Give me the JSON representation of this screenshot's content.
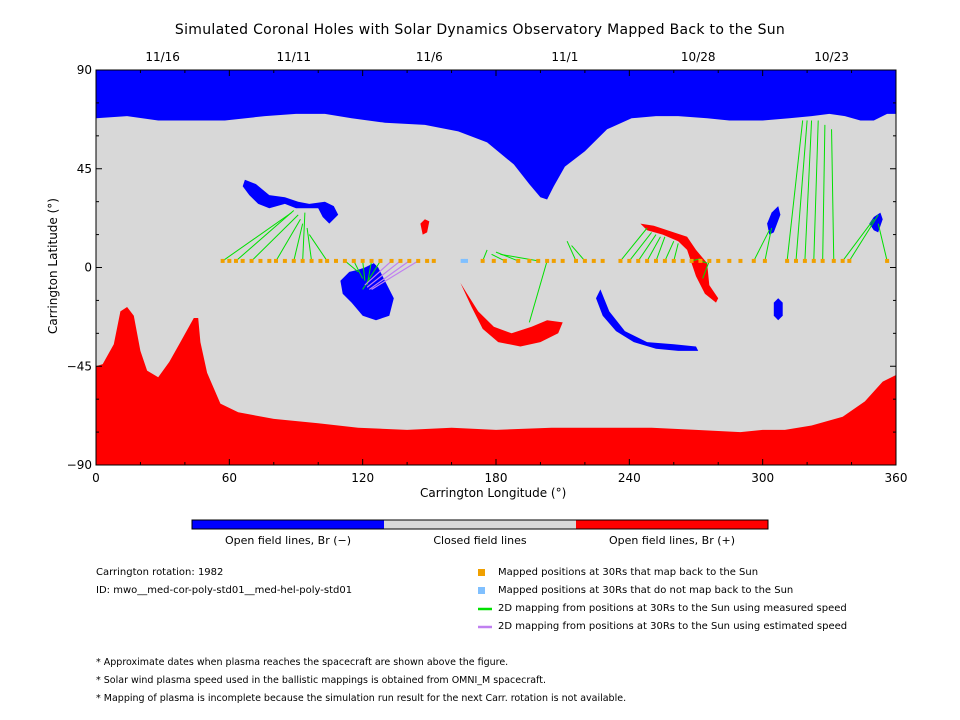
{
  "chart_data": {
    "type": "map",
    "title": "Simulated Coronal Holes with Solar Dynamics Observatory Mapped Back to the Sun",
    "xlabel": "Carrington Longitude (°)",
    "ylabel": "Carrington Latitude (°)",
    "xlim": [
      0,
      360
    ],
    "ylim": [
      -90,
      90
    ],
    "x_ticks": [
      "0",
      "60",
      "120",
      "180",
      "240",
      "300",
      "360"
    ],
    "y_ticks": [
      "90",
      "45",
      "0",
      "−45",
      "−90"
    ],
    "top_dates": [
      {
        "label": "11/16",
        "lon": 30
      },
      {
        "label": "11/11",
        "lon": 89
      },
      {
        "label": "11/6",
        "lon": 150
      },
      {
        "label": "11/1",
        "lon": 211
      },
      {
        "label": "10/28",
        "lon": 271
      },
      {
        "label": "10/23",
        "lon": 331
      }
    ],
    "colors": {
      "open_negative": "#0000ff",
      "closed": "#d8d8d8",
      "open_positive": "#ff0000",
      "mapped_marker": "#f0a000",
      "unmapped_marker": "#80c0ff",
      "measured_line": "#00e000",
      "estimated_line": "#c080f0"
    },
    "colorbar": [
      {
        "label": "Open field lines, Br (−)",
        "color": "#0000ff"
      },
      {
        "label": "Closed field lines",
        "color": "#d8d8d8"
      },
      {
        "label": "Open field lines, Br (+)",
        "color": "#ff0000"
      }
    ],
    "mapped_positions_lon": [
      57,
      60,
      63,
      66,
      70,
      74,
      78,
      81,
      85,
      89,
      93,
      97,
      101,
      104,
      108,
      112,
      116,
      120,
      124,
      128,
      133,
      137,
      141,
      145,
      149,
      152,
      174,
      179,
      184,
      190,
      195,
      199,
      203,
      206,
      210,
      216,
      220,
      224,
      228,
      236,
      240,
      244,
      248,
      252,
      256,
      260,
      264,
      268,
      272,
      276,
      280,
      285,
      290,
      296,
      301,
      311,
      315,
      319,
      323,
      327,
      332,
      336,
      339,
      356
    ],
    "unmapped_positions_lon": [
      165,
      166.5
    ],
    "latitude_of_positions": 3,
    "measured_mappings": [
      {
        "from": 57,
        "to": [
          88,
          25
        ]
      },
      {
        "from": 63,
        "to": [
          89,
          26
        ]
      },
      {
        "from": 70,
        "to": [
          91,
          24
        ]
      },
      {
        "from": 81,
        "to": [
          92,
          22
        ]
      },
      {
        "from": 89,
        "to": [
          93,
          20
        ]
      },
      {
        "from": 93,
        "to": [
          94,
          25
        ]
      },
      {
        "from": 97,
        "to": [
          95,
          18
        ]
      },
      {
        "from": 104,
        "to": [
          96,
          15
        ]
      },
      {
        "from": 112,
        "to": [
          118,
          -2
        ]
      },
      {
        "from": 116,
        "to": [
          120,
          -5
        ]
      },
      {
        "from": 120,
        "to": [
          121,
          -6
        ]
      },
      {
        "from": 124,
        "to": [
          122,
          -8
        ]
      },
      {
        "from": 128,
        "to": [
          120,
          -10
        ]
      },
      {
        "from": 174,
        "to": [
          176,
          8
        ]
      },
      {
        "from": 184,
        "to": [
          178,
          6
        ]
      },
      {
        "from": 190,
        "to": [
          180,
          7
        ]
      },
      {
        "from": 199,
        "to": [
          182,
          6
        ]
      },
      {
        "from": 203,
        "to": [
          195,
          -25
        ]
      },
      {
        "from": 216,
        "to": [
          212,
          12
        ]
      },
      {
        "from": 220,
        "to": [
          214,
          10
        ]
      },
      {
        "from": 236,
        "to": [
          248,
          18
        ]
      },
      {
        "from": 240,
        "to": [
          250,
          16
        ]
      },
      {
        "from": 244,
        "to": [
          252,
          15
        ]
      },
      {
        "from": 248,
        "to": [
          254,
          14
        ]
      },
      {
        "from": 252,
        "to": [
          256,
          14
        ]
      },
      {
        "from": 256,
        "to": [
          260,
          12
        ]
      },
      {
        "from": 260,
        "to": [
          262,
          11
        ]
      },
      {
        "from": 268,
        "to": [
          272,
          4
        ]
      },
      {
        "from": 272,
        "to": [
          275,
          2
        ]
      },
      {
        "from": 276,
        "to": [
          273,
          -5
        ]
      },
      {
        "from": 296,
        "to": [
          303,
          17
        ]
      },
      {
        "from": 301,
        "to": [
          304,
          18
        ]
      },
      {
        "from": 311,
        "to": [
          318,
          67
        ]
      },
      {
        "from": 315,
        "to": [
          320,
          67
        ]
      },
      {
        "from": 319,
        "to": [
          322,
          67
        ]
      },
      {
        "from": 323,
        "to": [
          325,
          67
        ]
      },
      {
        "from": 327,
        "to": [
          328,
          65
        ]
      },
      {
        "from": 332,
        "to": [
          331,
          63
        ]
      },
      {
        "from": 336,
        "to": [
          350,
          22
        ]
      },
      {
        "from": 339,
        "to": [
          352,
          24
        ]
      },
      {
        "from": 356,
        "to": [
          352,
          20
        ]
      }
    ],
    "estimated_mappings": [
      {
        "from": 133,
        "to": [
          121,
          -8
        ]
      },
      {
        "from": 137,
        "to": [
          122,
          -9
        ]
      },
      {
        "from": 141,
        "to": [
          123,
          -10
        ]
      },
      {
        "from": 145,
        "to": [
          124,
          -10
        ]
      }
    ]
  },
  "legend": [
    {
      "marker": "square-orange",
      "text": "Mapped positions at 30Rs that map back to the Sun"
    },
    {
      "marker": "square-lightblue",
      "text": "Mapped positions at 30Rs that do not map back to the Sun"
    },
    {
      "marker": "line-green",
      "text": "2D mapping from positions at 30Rs to the Sun using measured speed"
    },
    {
      "marker": "line-purple",
      "text": "2D mapping from positions at 30Rs to the Sun using estimated speed"
    }
  ],
  "info": {
    "rotation": "Carrington rotation: 1982",
    "id": "ID: mwo__med-cor-poly-std01__med-hel-poly-std01"
  },
  "notes": [
    "* Approximate dates when plasma reaches the spacecraft are shown above the figure.",
    "* Solar wind plasma speed used in the ballistic mappings is obtained from OMNI_M spacecraft.",
    "* Mapping of plasma is incomplete because the simulation run result for the next Carr. rotation is not available."
  ]
}
